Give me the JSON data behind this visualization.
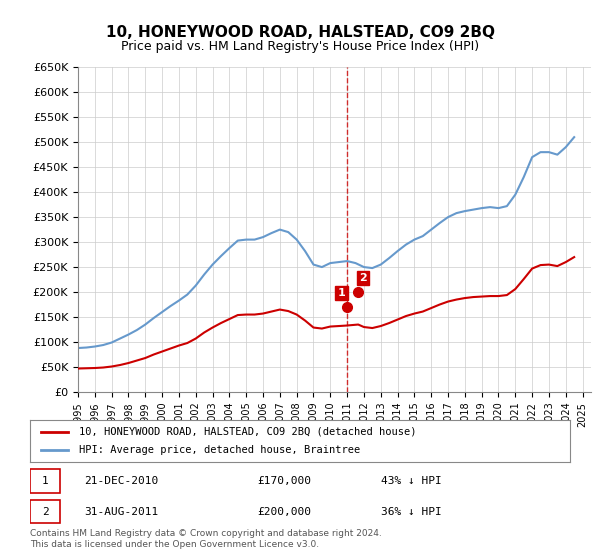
{
  "title": "10, HONEYWOOD ROAD, HALSTEAD, CO9 2BQ",
  "subtitle": "Price paid vs. HM Land Registry's House Price Index (HPI)",
  "legend_line1": "10, HONEYWOOD ROAD, HALSTEAD, CO9 2BQ (detached house)",
  "legend_line2": "HPI: Average price, detached house, Braintree",
  "transaction1_label": "1",
  "transaction1_date": "21-DEC-2010",
  "transaction1_price": "£170,000",
  "transaction1_hpi": "43% ↓ HPI",
  "transaction2_label": "2",
  "transaction2_date": "31-AUG-2011",
  "transaction2_price": "£200,000",
  "transaction2_hpi": "36% ↓ HPI",
  "footer": "Contains HM Land Registry data © Crown copyright and database right 2024.\nThis data is licensed under the Open Government Licence v3.0.",
  "red_line_color": "#cc0000",
  "blue_line_color": "#6699cc",
  "vline_color": "#cc0000",
  "background_color": "#ffffff",
  "grid_color": "#cccccc",
  "ylim": [
    0,
    650000
  ],
  "yticks": [
    0,
    50000,
    100000,
    150000,
    200000,
    250000,
    300000,
    350000,
    400000,
    450000,
    500000,
    550000,
    600000,
    650000
  ],
  "xmin": 1995.0,
  "xmax": 2025.5,
  "transaction1_x": 2010.97,
  "transaction1_y": 170000,
  "transaction2_x": 2011.66,
  "transaction2_y": 200000,
  "vline_x": 2011.0,
  "hpi_x": [
    1995.0,
    1995.5,
    1996.0,
    1996.5,
    1997.0,
    1997.5,
    1998.0,
    1998.5,
    1999.0,
    1999.5,
    2000.0,
    2000.5,
    2001.0,
    2001.5,
    2002.0,
    2002.5,
    2003.0,
    2003.5,
    2004.0,
    2004.5,
    2005.0,
    2005.5,
    2006.0,
    2006.5,
    2007.0,
    2007.5,
    2008.0,
    2008.5,
    2009.0,
    2009.5,
    2010.0,
    2010.5,
    2011.0,
    2011.5,
    2012.0,
    2012.5,
    2013.0,
    2013.5,
    2014.0,
    2014.5,
    2015.0,
    2015.5,
    2016.0,
    2016.5,
    2017.0,
    2017.5,
    2018.0,
    2018.5,
    2019.0,
    2019.5,
    2020.0,
    2020.5,
    2021.0,
    2021.5,
    2022.0,
    2022.5,
    2023.0,
    2023.5,
    2024.0,
    2024.5
  ],
  "hpi_y": [
    88000,
    89000,
    91000,
    94000,
    99000,
    107000,
    115000,
    124000,
    135000,
    148000,
    160000,
    172000,
    183000,
    195000,
    213000,
    235000,
    255000,
    272000,
    288000,
    303000,
    305000,
    305000,
    310000,
    318000,
    325000,
    320000,
    305000,
    282000,
    255000,
    250000,
    258000,
    260000,
    262000,
    258000,
    250000,
    248000,
    255000,
    268000,
    282000,
    295000,
    305000,
    312000,
    325000,
    338000,
    350000,
    358000,
    362000,
    365000,
    368000,
    370000,
    368000,
    372000,
    395000,
    430000,
    470000,
    480000,
    480000,
    475000,
    490000,
    510000
  ],
  "red_x": [
    1995.0,
    1995.5,
    1996.0,
    1996.5,
    1997.0,
    1997.5,
    1998.0,
    1998.5,
    1999.0,
    1999.5,
    2000.0,
    2000.5,
    2001.0,
    2001.5,
    2002.0,
    2002.5,
    2003.0,
    2003.5,
    2004.0,
    2004.5,
    2005.0,
    2005.5,
    2006.0,
    2006.5,
    2007.0,
    2007.5,
    2008.0,
    2008.5,
    2009.0,
    2009.5,
    2010.0,
    2010.5,
    2010.97,
    2011.66,
    2012.0,
    2012.5,
    2013.0,
    2013.5,
    2014.0,
    2014.5,
    2015.0,
    2015.5,
    2016.0,
    2016.5,
    2017.0,
    2017.5,
    2018.0,
    2018.5,
    2019.0,
    2019.5,
    2020.0,
    2020.5,
    2021.0,
    2021.5,
    2022.0,
    2022.5,
    2023.0,
    2023.5,
    2024.0,
    2024.5
  ],
  "red_y": [
    47000,
    47500,
    48000,
    49000,
    51000,
    54000,
    58000,
    63000,
    68000,
    75000,
    81000,
    87000,
    93000,
    98000,
    107000,
    119000,
    129000,
    138000,
    146000,
    154000,
    155000,
    155000,
    157000,
    161000,
    165000,
    162000,
    155000,
    143000,
    129000,
    127000,
    131000,
    132000,
    133000,
    135000,
    130000,
    128000,
    132000,
    138000,
    145000,
    152000,
    157000,
    161000,
    168000,
    175000,
    181000,
    185000,
    188000,
    190000,
    191000,
    192000,
    192000,
    194000,
    206000,
    226000,
    247000,
    254000,
    255000,
    252000,
    260000,
    270000
  ],
  "point1_x": 2010.97,
  "point1_y": 170000,
  "point2_x": 2011.66,
  "point2_y": 200000
}
